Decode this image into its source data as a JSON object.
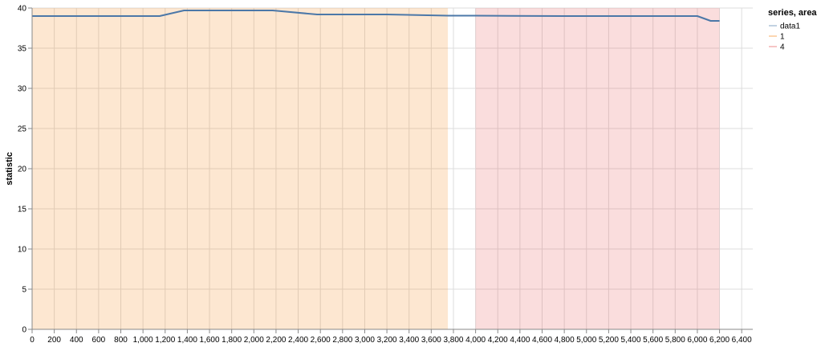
{
  "chart_data": {
    "type": "line",
    "title": "",
    "xlabel": "",
    "ylabel": "statistic",
    "xlim": [
      0,
      6500
    ],
    "ylim": [
      0,
      40
    ],
    "x_ticks": [
      0,
      200,
      400,
      600,
      800,
      1000,
      1200,
      1400,
      1600,
      1800,
      2000,
      2200,
      2400,
      2600,
      2800,
      3000,
      3200,
      3400,
      3600,
      3800,
      4000,
      4200,
      4400,
      4600,
      4800,
      5000,
      5200,
      5400,
      5600,
      5800,
      6000,
      6200,
      6400
    ],
    "x_tick_labels": [
      "0",
      "200",
      "400",
      "600",
      "800",
      "1,000",
      "1,200",
      "1,400",
      "1,600",
      "1,800",
      "2,000",
      "2,200",
      "2,400",
      "2,600",
      "2,800",
      "3,000",
      "3,200",
      "3,400",
      "3,600",
      "3,800",
      "4,000",
      "4,200",
      "4,400",
      "4,600",
      "4,800",
      "5,000",
      "5,200",
      "5,400",
      "5,600",
      "5,800",
      "6,000",
      "6,200",
      "6,400"
    ],
    "y_ticks": [
      0,
      5,
      10,
      15,
      20,
      25,
      30,
      35,
      40
    ],
    "y_tick_labels": [
      "0",
      "5",
      "10",
      "15",
      "20",
      "25",
      "30",
      "35",
      "40"
    ],
    "grid": true,
    "legend_position": "top-right",
    "legend": {
      "title": "series, area",
      "entries": [
        {
          "label": "data1",
          "color": "#4c78a8"
        },
        {
          "label": "1",
          "color": "#f58518"
        },
        {
          "label": "4",
          "color": "#e45756"
        }
      ]
    },
    "areas": [
      {
        "name": "1",
        "x_start": 0,
        "x_end": 3750,
        "color": "#f58518",
        "opacity": 0.2
      },
      {
        "name": "4",
        "x_start": 4000,
        "x_end": 6200,
        "color": "#e45756",
        "opacity": 0.2
      }
    ],
    "series": [
      {
        "name": "data1",
        "color": "#4c78a8",
        "x": [
          0,
          1150,
          1370,
          2170,
          2570,
          3200,
          3750,
          4000,
          4800,
          6000,
          6120,
          6200
        ],
        "y": [
          39.0,
          39.0,
          39.7,
          39.7,
          39.2,
          39.2,
          39.05,
          39.05,
          39.0,
          39.0,
          38.4,
          38.4
        ]
      }
    ]
  }
}
